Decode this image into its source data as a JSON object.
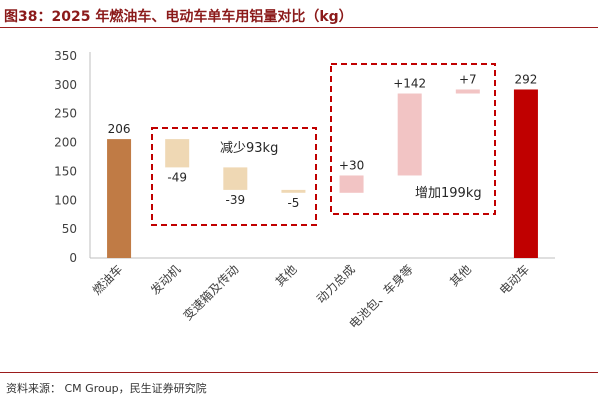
{
  "header": {
    "title": "图38：2025 年燃油车、电动车单车用铝量对比（kg）"
  },
  "footer": {
    "source": "资料来源： CM Group，民生证券研究院"
  },
  "colors": {
    "title": "#8b1a1a",
    "rule": "#9b1c1c",
    "fuel_bar": "#c07b45",
    "decrease": "#efd8b4",
    "increase": "#f2c4c4",
    "ev_bar": "#c00000",
    "annotation_box": "#c00000"
  },
  "chart_data": {
    "type": "bar",
    "subtype": "waterfall",
    "categories": [
      "燃油车",
      "发动机",
      "变速箱及传动",
      "其他",
      "动力总成",
      "电池包、车身等",
      "其他",
      "电动车"
    ],
    "values": [
      206,
      -49,
      -39,
      -5,
      30,
      142,
      7,
      292
    ],
    "value_labels": [
      "206",
      "-49",
      "-39",
      "-5",
      "+30",
      "+142",
      "+7",
      "292"
    ],
    "ylim": [
      0,
      350
    ],
    "yticks": [
      0,
      50,
      100,
      150,
      200,
      250,
      300,
      350
    ],
    "grid": false,
    "annotations": [
      {
        "text": "减少93kg",
        "group": [
          1,
          3
        ],
        "style": "dashed-box"
      },
      {
        "text": "增加199kg",
        "group": [
          4,
          6
        ],
        "style": "dashed-box"
      }
    ]
  }
}
